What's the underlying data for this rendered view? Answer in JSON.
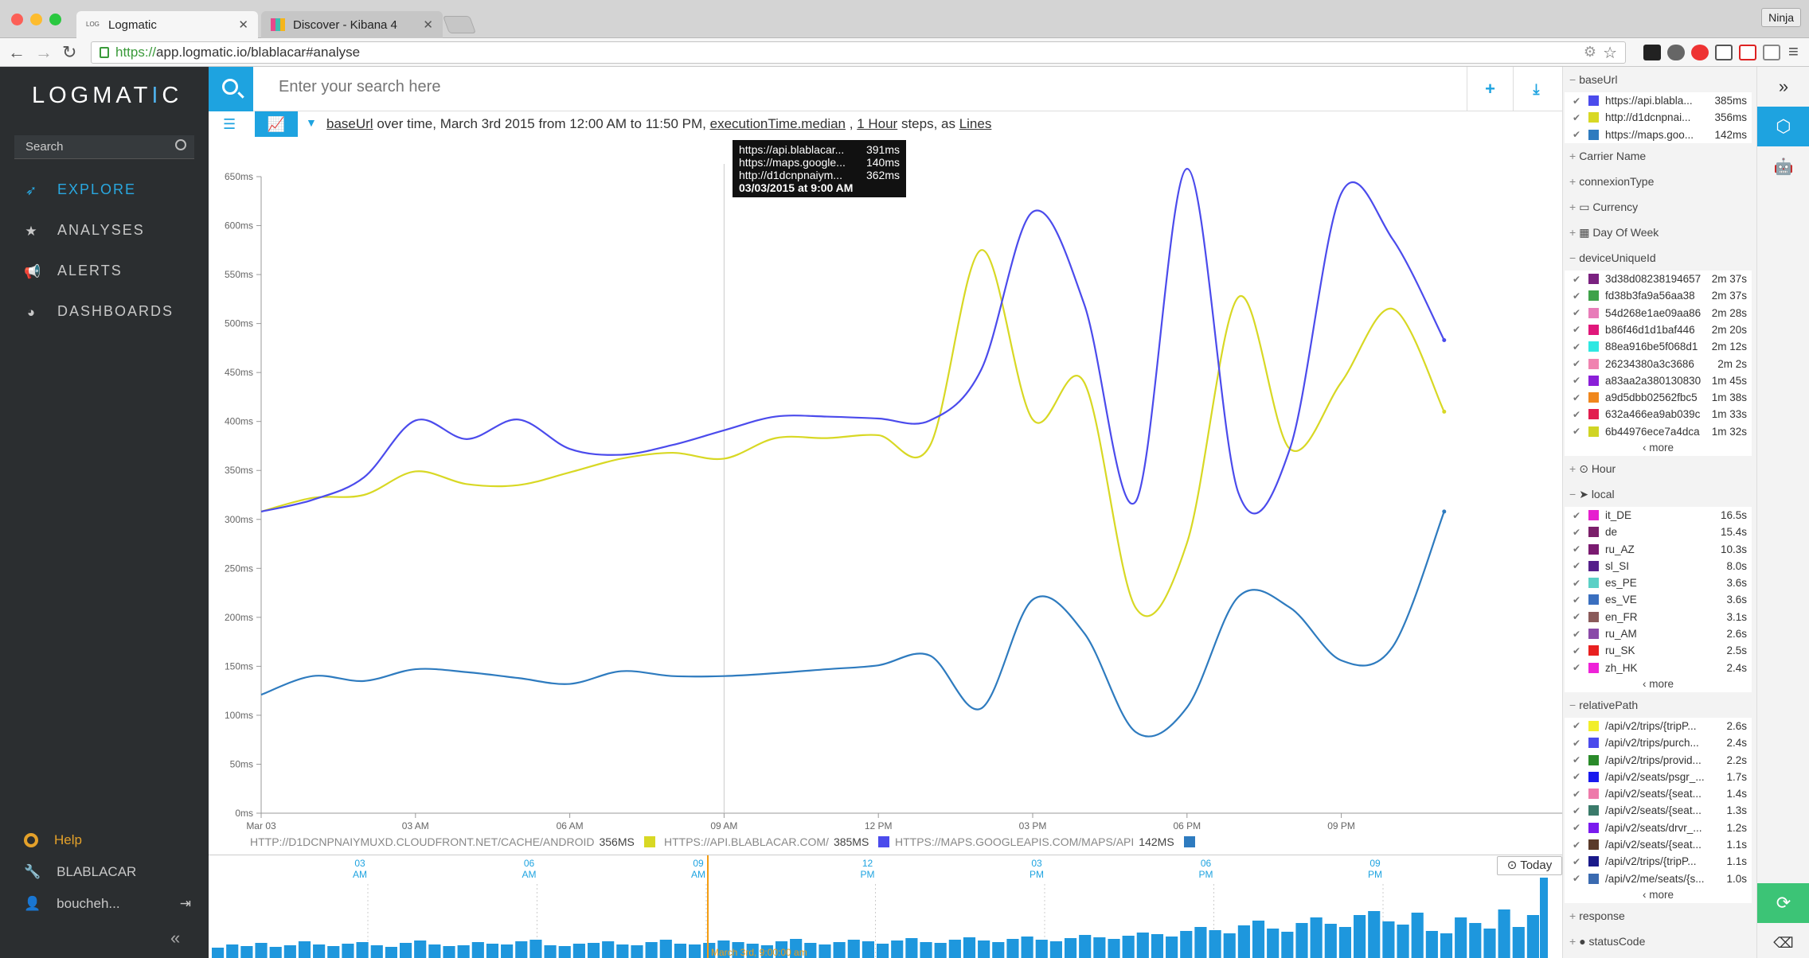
{
  "browser": {
    "tabs": [
      {
        "title": "Logmatic"
      },
      {
        "title": "Discover - Kibana 4"
      }
    ],
    "profile": "Ninja",
    "url_https": "https://",
    "url_rest": "app.logmatic.io/blablacar#analyse"
  },
  "sidebar": {
    "logo_a": "LOGMAT",
    "logo_b": "I",
    "logo_c": "C",
    "search_placeholder": "Search",
    "nav": [
      {
        "label": "EXPLORE",
        "icon": "rocket-icon"
      },
      {
        "label": "ANALYSES",
        "icon": "star-icon"
      },
      {
        "label": "ALERTS",
        "icon": "megaphone-icon"
      },
      {
        "label": "DASHBOARDS",
        "icon": "dashboard-icon"
      }
    ],
    "help": "Help",
    "org": "BLABLACAR",
    "user": "boucheh..."
  },
  "search": {
    "placeholder": "Enter your search here"
  },
  "query": {
    "field": "baseUrl",
    "t1": " over time, ",
    "range": "March 3rd 2015 from 12:00 AM to 11:50 PM, ",
    "metric": "executionTime.median",
    "t2": " , ",
    "step": "1 Hour",
    "t3": " steps, as ",
    "type": "Lines"
  },
  "tooltip": {
    "rows": [
      {
        "label": "https://api.blablacar...",
        "value": "391ms"
      },
      {
        "label": "https://maps.google...",
        "value": "140ms"
      },
      {
        "label": "http://d1dcnpnaiym...",
        "value": "362ms"
      }
    ],
    "date": "03/03/2015 at 9:00 AM"
  },
  "chart_data": {
    "type": "line",
    "x": [
      0,
      1,
      2,
      3,
      4,
      5,
      6,
      7,
      8,
      9,
      10,
      11,
      12,
      13,
      14,
      15,
      16,
      17,
      18,
      19,
      20,
      21,
      22,
      23
    ],
    "x_tick_labels": [
      "Mar 03",
      "03 AM",
      "06 AM",
      "09 AM",
      "12 PM",
      "03 PM",
      "06 PM",
      "09 PM"
    ],
    "x_tick_positions": [
      0,
      3,
      6,
      9,
      12,
      15,
      18,
      21
    ],
    "y_tick_labels": [
      "0ms",
      "50ms",
      "100ms",
      "150ms",
      "200ms",
      "250ms",
      "300ms",
      "350ms",
      "400ms",
      "450ms",
      "500ms",
      "550ms",
      "600ms",
      "650ms"
    ],
    "ylim": [
      0,
      650
    ],
    "series": [
      {
        "name": "HTTP://D1DCNPNAIYMUXD.CLOUDFRONT.NET/CACHE/ANDROID",
        "total": "356MS",
        "color": "#d8d824",
        "values": [
          308,
          322,
          325,
          349,
          336,
          335,
          348,
          362,
          368,
          362,
          383,
          383,
          386,
          375,
          575,
          402,
          440,
          210,
          276,
          527,
          372,
          440,
          515,
          410
        ]
      },
      {
        "name": "HTTPS://API.BLABLACAR.COM/",
        "total": "385MS",
        "color": "#4b4bec",
        "values": [
          308,
          320,
          343,
          401,
          382,
          402,
          372,
          366,
          376,
          391,
          405,
          405,
          403,
          401,
          453,
          614,
          520,
          318,
          658,
          327,
          372,
          633,
          586,
          483
        ]
      },
      {
        "name": "HTTPS://MAPS.GOOGLEAPIS.COM/MAPS/API",
        "total": "142MS",
        "color": "#2e7bbf",
        "values": [
          121,
          140,
          135,
          147,
          144,
          138,
          132,
          145,
          140,
          140,
          143,
          147,
          151,
          161,
          107,
          218,
          184,
          83,
          108,
          221,
          210,
          156,
          170,
          308
        ]
      }
    ],
    "hover_x": 9
  },
  "timeline": {
    "labels": [
      {
        "h": "03",
        "ap": "AM"
      },
      {
        "h": "06",
        "ap": "AM"
      },
      {
        "h": "09",
        "ap": "AM"
      },
      {
        "h": "12",
        "ap": "PM"
      },
      {
        "h": "03",
        "ap": "PM"
      },
      {
        "h": "06",
        "ap": "PM"
      },
      {
        "h": "09",
        "ap": "PM"
      }
    ],
    "cursor_label": "March 3rd, 9:00:00 am",
    "today": "Today",
    "bars": [
      14,
      18,
      16,
      20,
      15,
      17,
      22,
      18,
      16,
      19,
      21,
      17,
      15,
      20,
      23,
      18,
      16,
      17,
      21,
      19,
      18,
      22,
      24,
      17,
      16,
      19,
      20,
      22,
      18,
      17,
      21,
      24,
      19,
      18,
      20,
      23,
      21,
      19,
      17,
      22,
      25,
      20,
      18,
      21,
      24,
      22,
      19,
      23,
      26,
      21,
      20,
      24,
      27,
      23,
      21,
      25,
      28,
      24,
      22,
      26,
      30,
      27,
      25,
      29,
      33,
      31,
      28,
      35,
      40,
      36,
      32,
      42,
      48,
      38,
      34,
      45,
      52,
      44,
      40,
      55,
      60,
      47,
      43,
      58,
      35,
      32,
      52,
      45,
      38,
      62,
      40,
      55
    ]
  },
  "facets": {
    "baseUrl": {
      "title": "baseUrl",
      "items": [
        {
          "label": "https://api.blabla...",
          "value": "385ms",
          "color": "#4b4bec"
        },
        {
          "label": "http://d1dcnpnai...",
          "value": "356ms",
          "color": "#d8d824"
        },
        {
          "label": "https://maps.goo...",
          "value": "142ms",
          "color": "#2e7bbf"
        }
      ]
    },
    "collapsed1": [
      "Carrier Name",
      "connexionType",
      "Currency",
      "Day Of Week"
    ],
    "deviceUniqueId": {
      "title": "deviceUniqueId",
      "items": [
        {
          "label": "3d38d08238194657",
          "value": "2m 37s",
          "color": "#7a2180"
        },
        {
          "label": "fd38b3fa9a56aa38",
          "value": "2m 37s",
          "color": "#3fa24a"
        },
        {
          "label": "54d268e1ae09aa86",
          "value": "2m 28s",
          "color": "#e87cb9"
        },
        {
          "label": "b86f46d1d1baf446",
          "value": "2m 20s",
          "color": "#e0177a"
        },
        {
          "label": "88ea916be5f068d1",
          "value": "2m 12s",
          "color": "#2ee8e2"
        },
        {
          "label": "26234380a3c3686",
          "value": "2m 2s",
          "color": "#f083b0"
        },
        {
          "label": "a83aa2a380130830",
          "value": "1m 45s",
          "color": "#8a1fd8"
        },
        {
          "label": "a9d5dbb02562fbc5",
          "value": "1m 38s",
          "color": "#f0871d"
        },
        {
          "label": "632a466ea9ab039c",
          "value": "1m 33s",
          "color": "#e21d4f"
        },
        {
          "label": "6b44976ece7a4dca",
          "value": "1m 32s",
          "color": "#d0d424"
        }
      ],
      "more": "‹ more"
    },
    "hour": "Hour",
    "local": {
      "title": "local",
      "items": [
        {
          "label": "it_DE",
          "value": "16.5s",
          "color": "#e61fcf"
        },
        {
          "label": "de",
          "value": "15.4s",
          "color": "#7b1f6a"
        },
        {
          "label": "ru_AZ",
          "value": "10.3s",
          "color": "#7a1a70"
        },
        {
          "label": "sl_SI",
          "value": "8.0s",
          "color": "#55208a"
        },
        {
          "label": "es_PE",
          "value": "3.6s",
          "color": "#5bd0c6"
        },
        {
          "label": "es_VE",
          "value": "3.6s",
          "color": "#3a6fbf"
        },
        {
          "label": "en_FR",
          "value": "3.1s",
          "color": "#8a5a5a"
        },
        {
          "label": "ru_AM",
          "value": "2.6s",
          "color": "#8a4aa8"
        },
        {
          "label": "ru_SK",
          "value": "2.5s",
          "color": "#e82020"
        },
        {
          "label": "zh_HK",
          "value": "2.4s",
          "color": "#ee22d8"
        }
      ],
      "more": "‹ more"
    },
    "relativePath": {
      "title": "relativePath",
      "items": [
        {
          "label": "/api/v2/trips/{tripP...",
          "value": "2.6s",
          "color": "#f2ee2a"
        },
        {
          "label": "/api/v2/trips/purch...",
          "value": "2.4s",
          "color": "#4b4bec"
        },
        {
          "label": "/api/v2/trips/provid...",
          "value": "2.2s",
          "color": "#2a8a2a"
        },
        {
          "label": "/api/v2/seats/psgr_...",
          "value": "1.7s",
          "color": "#1a1aee"
        },
        {
          "label": "/api/v2/seats/{seat...",
          "value": "1.4s",
          "color": "#ee7aaa"
        },
        {
          "label": "/api/v2/seats/{seat...",
          "value": "1.3s",
          "color": "#3a7a6a"
        },
        {
          "label": "/api/v2/seats/drvr_...",
          "value": "1.2s",
          "color": "#7a1aee"
        },
        {
          "label": "/api/v2/seats/{seat...",
          "value": "1.1s",
          "color": "#5a3a2a"
        },
        {
          "label": "/api/v2/trips/{tripP...",
          "value": "1.1s",
          "color": "#1a1a8a"
        },
        {
          "label": "/api/v2/me/seats/{s...",
          "value": "1.0s",
          "color": "#3a6ab0"
        }
      ],
      "more": "‹ more"
    },
    "collapsed2": [
      "response",
      "statusCode"
    ]
  }
}
